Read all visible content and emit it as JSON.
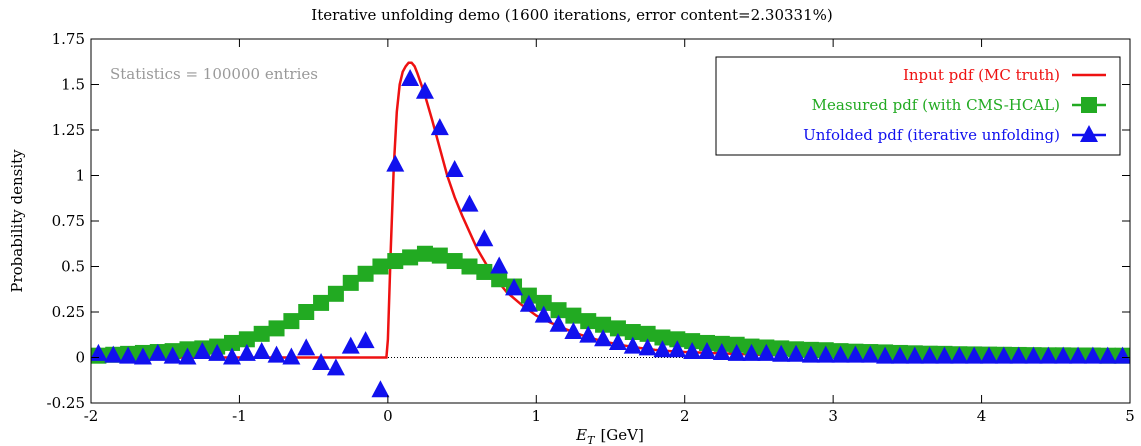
{
  "chart_data": {
    "type": "line",
    "title": "Iterative unfolding demo (1600 iterations, error content=2.30331%)",
    "xlabel_main": "E",
    "xlabel_sub": "T",
    "xlabel_unit": "[GeV]",
    "ylabel": "Probability density",
    "annotation": "Statistics = 100000 entries",
    "xlim": [
      -2,
      5
    ],
    "ylim": [
      -0.25,
      1.75
    ],
    "x_ticks": [
      -2,
      -1,
      0,
      1,
      2,
      3,
      4,
      5
    ],
    "x_tick_labels": [
      "-2",
      "-1",
      "0",
      "1",
      "2",
      "3",
      "4",
      "5"
    ],
    "y_ticks": [
      -0.25,
      0,
      0.25,
      0.5,
      0.75,
      1,
      1.25,
      1.5,
      1.75
    ],
    "y_tick_labels": [
      "-0.25",
      "0",
      "0.25",
      "0.5",
      "0.75",
      "1",
      "1.25",
      "1.5",
      "1.75"
    ],
    "legend_position": "top-right",
    "colors": {
      "input": "#ee1111",
      "measured": "#22aa22",
      "unfolded": "#1111ee",
      "axis": "#000000",
      "annotation": "#999999"
    },
    "series": [
      {
        "name": "Input pdf (MC truth)",
        "style": "line",
        "x": [
          -2,
          -0.01,
          0.0,
          0.02,
          0.04,
          0.06,
          0.08,
          0.1,
          0.12,
          0.14,
          0.16,
          0.18,
          0.2,
          0.25,
          0.3,
          0.35,
          0.4,
          0.45,
          0.5,
          0.6,
          0.7,
          0.8,
          0.9,
          1.0,
          1.1,
          1.2,
          1.3,
          1.4,
          1.5,
          1.6,
          1.7,
          1.8,
          1.9,
          2.0,
          2.5,
          3.0,
          3.5,
          4.0,
          4.5,
          5.0
        ],
        "y": [
          0,
          0,
          0.1,
          0.6,
          1.05,
          1.35,
          1.5,
          1.57,
          1.6,
          1.62,
          1.62,
          1.6,
          1.56,
          1.44,
          1.3,
          1.15,
          1.0,
          0.88,
          0.78,
          0.6,
          0.46,
          0.36,
          0.29,
          0.23,
          0.19,
          0.155,
          0.125,
          0.1,
          0.08,
          0.065,
          0.052,
          0.042,
          0.035,
          0.03,
          0.015,
          0.01,
          0.008,
          0.006,
          0.005,
          0.004
        ]
      },
      {
        "name": "Measured pdf (with CMS-HCAL)",
        "style": "squares",
        "x": [
          -1.95,
          -1.85,
          -1.75,
          -1.65,
          -1.55,
          -1.45,
          -1.35,
          -1.25,
          -1.15,
          -1.05,
          -0.95,
          -0.85,
          -0.75,
          -0.65,
          -0.55,
          -0.45,
          -0.35,
          -0.25,
          -0.15,
          -0.05,
          0.05,
          0.15,
          0.25,
          0.35,
          0.45,
          0.55,
          0.65,
          0.75,
          0.85,
          0.95,
          1.05,
          1.15,
          1.25,
          1.35,
          1.45,
          1.55,
          1.65,
          1.75,
          1.85,
          1.95,
          2.05,
          2.15,
          2.25,
          2.35,
          2.45,
          2.55,
          2.65,
          2.75,
          2.85,
          2.95,
          3.05,
          3.15,
          3.25,
          3.35,
          3.45,
          3.55,
          3.65,
          3.75,
          3.85,
          3.95,
          4.05,
          4.15,
          4.25,
          4.35,
          4.45,
          4.55,
          4.65,
          4.75,
          4.85,
          4.95
        ],
        "y": [
          0.01,
          0.015,
          0.02,
          0.025,
          0.03,
          0.035,
          0.045,
          0.05,
          0.06,
          0.08,
          0.1,
          0.13,
          0.16,
          0.2,
          0.25,
          0.3,
          0.35,
          0.41,
          0.46,
          0.5,
          0.53,
          0.55,
          0.57,
          0.56,
          0.53,
          0.5,
          0.47,
          0.43,
          0.39,
          0.34,
          0.3,
          0.26,
          0.23,
          0.2,
          0.18,
          0.16,
          0.14,
          0.13,
          0.11,
          0.1,
          0.09,
          0.08,
          0.075,
          0.07,
          0.06,
          0.055,
          0.05,
          0.045,
          0.042,
          0.04,
          0.035,
          0.032,
          0.03,
          0.028,
          0.025,
          0.023,
          0.021,
          0.02,
          0.018,
          0.017,
          0.016,
          0.015,
          0.014,
          0.013,
          0.012,
          0.012,
          0.011,
          0.011,
          0.01,
          0.01
        ]
      },
      {
        "name": "Unfolded pdf (iterative unfolding)",
        "style": "triangles",
        "x": [
          -1.95,
          -1.85,
          -1.75,
          -1.65,
          -1.55,
          -1.45,
          -1.35,
          -1.25,
          -1.15,
          -1.05,
          -0.95,
          -0.85,
          -0.75,
          -0.65,
          -0.55,
          -0.45,
          -0.35,
          -0.25,
          -0.15,
          -0.05,
          0.05,
          0.15,
          0.25,
          0.35,
          0.45,
          0.55,
          0.65,
          0.75,
          0.85,
          0.95,
          1.05,
          1.15,
          1.25,
          1.35,
          1.45,
          1.55,
          1.65,
          1.75,
          1.85,
          1.95,
          2.05,
          2.15,
          2.25,
          2.35,
          2.45,
          2.55,
          2.65,
          2.75,
          2.85,
          2.95,
          3.05,
          3.15,
          3.25,
          3.35,
          3.45,
          3.55,
          3.65,
          3.75,
          3.85,
          3.95,
          4.05,
          4.15,
          4.25,
          4.35,
          4.45,
          4.55,
          4.65,
          4.75,
          4.85,
          4.95
        ],
        "y": [
          0.02,
          0.01,
          0.005,
          0.0,
          0.02,
          0.005,
          0.0,
          0.03,
          0.02,
          0.0,
          0.02,
          0.03,
          0.01,
          0.0,
          0.05,
          -0.03,
          -0.06,
          0.06,
          0.09,
          -0.18,
          1.06,
          1.53,
          1.46,
          1.26,
          1.03,
          0.84,
          0.65,
          0.5,
          0.38,
          0.29,
          0.23,
          0.18,
          0.14,
          0.12,
          0.1,
          0.08,
          0.06,
          0.05,
          0.04,
          0.04,
          0.03,
          0.03,
          0.025,
          0.02,
          0.02,
          0.02,
          0.015,
          0.015,
          0.01,
          0.01,
          0.01,
          0.01,
          0.01,
          0.005,
          0.005,
          0.005,
          0.005,
          0.005,
          0.005,
          0.005,
          0.005,
          0.005,
          0.005,
          0.005,
          0.005,
          0.005,
          0.005,
          0.005,
          0.005,
          0.005
        ]
      }
    ]
  }
}
